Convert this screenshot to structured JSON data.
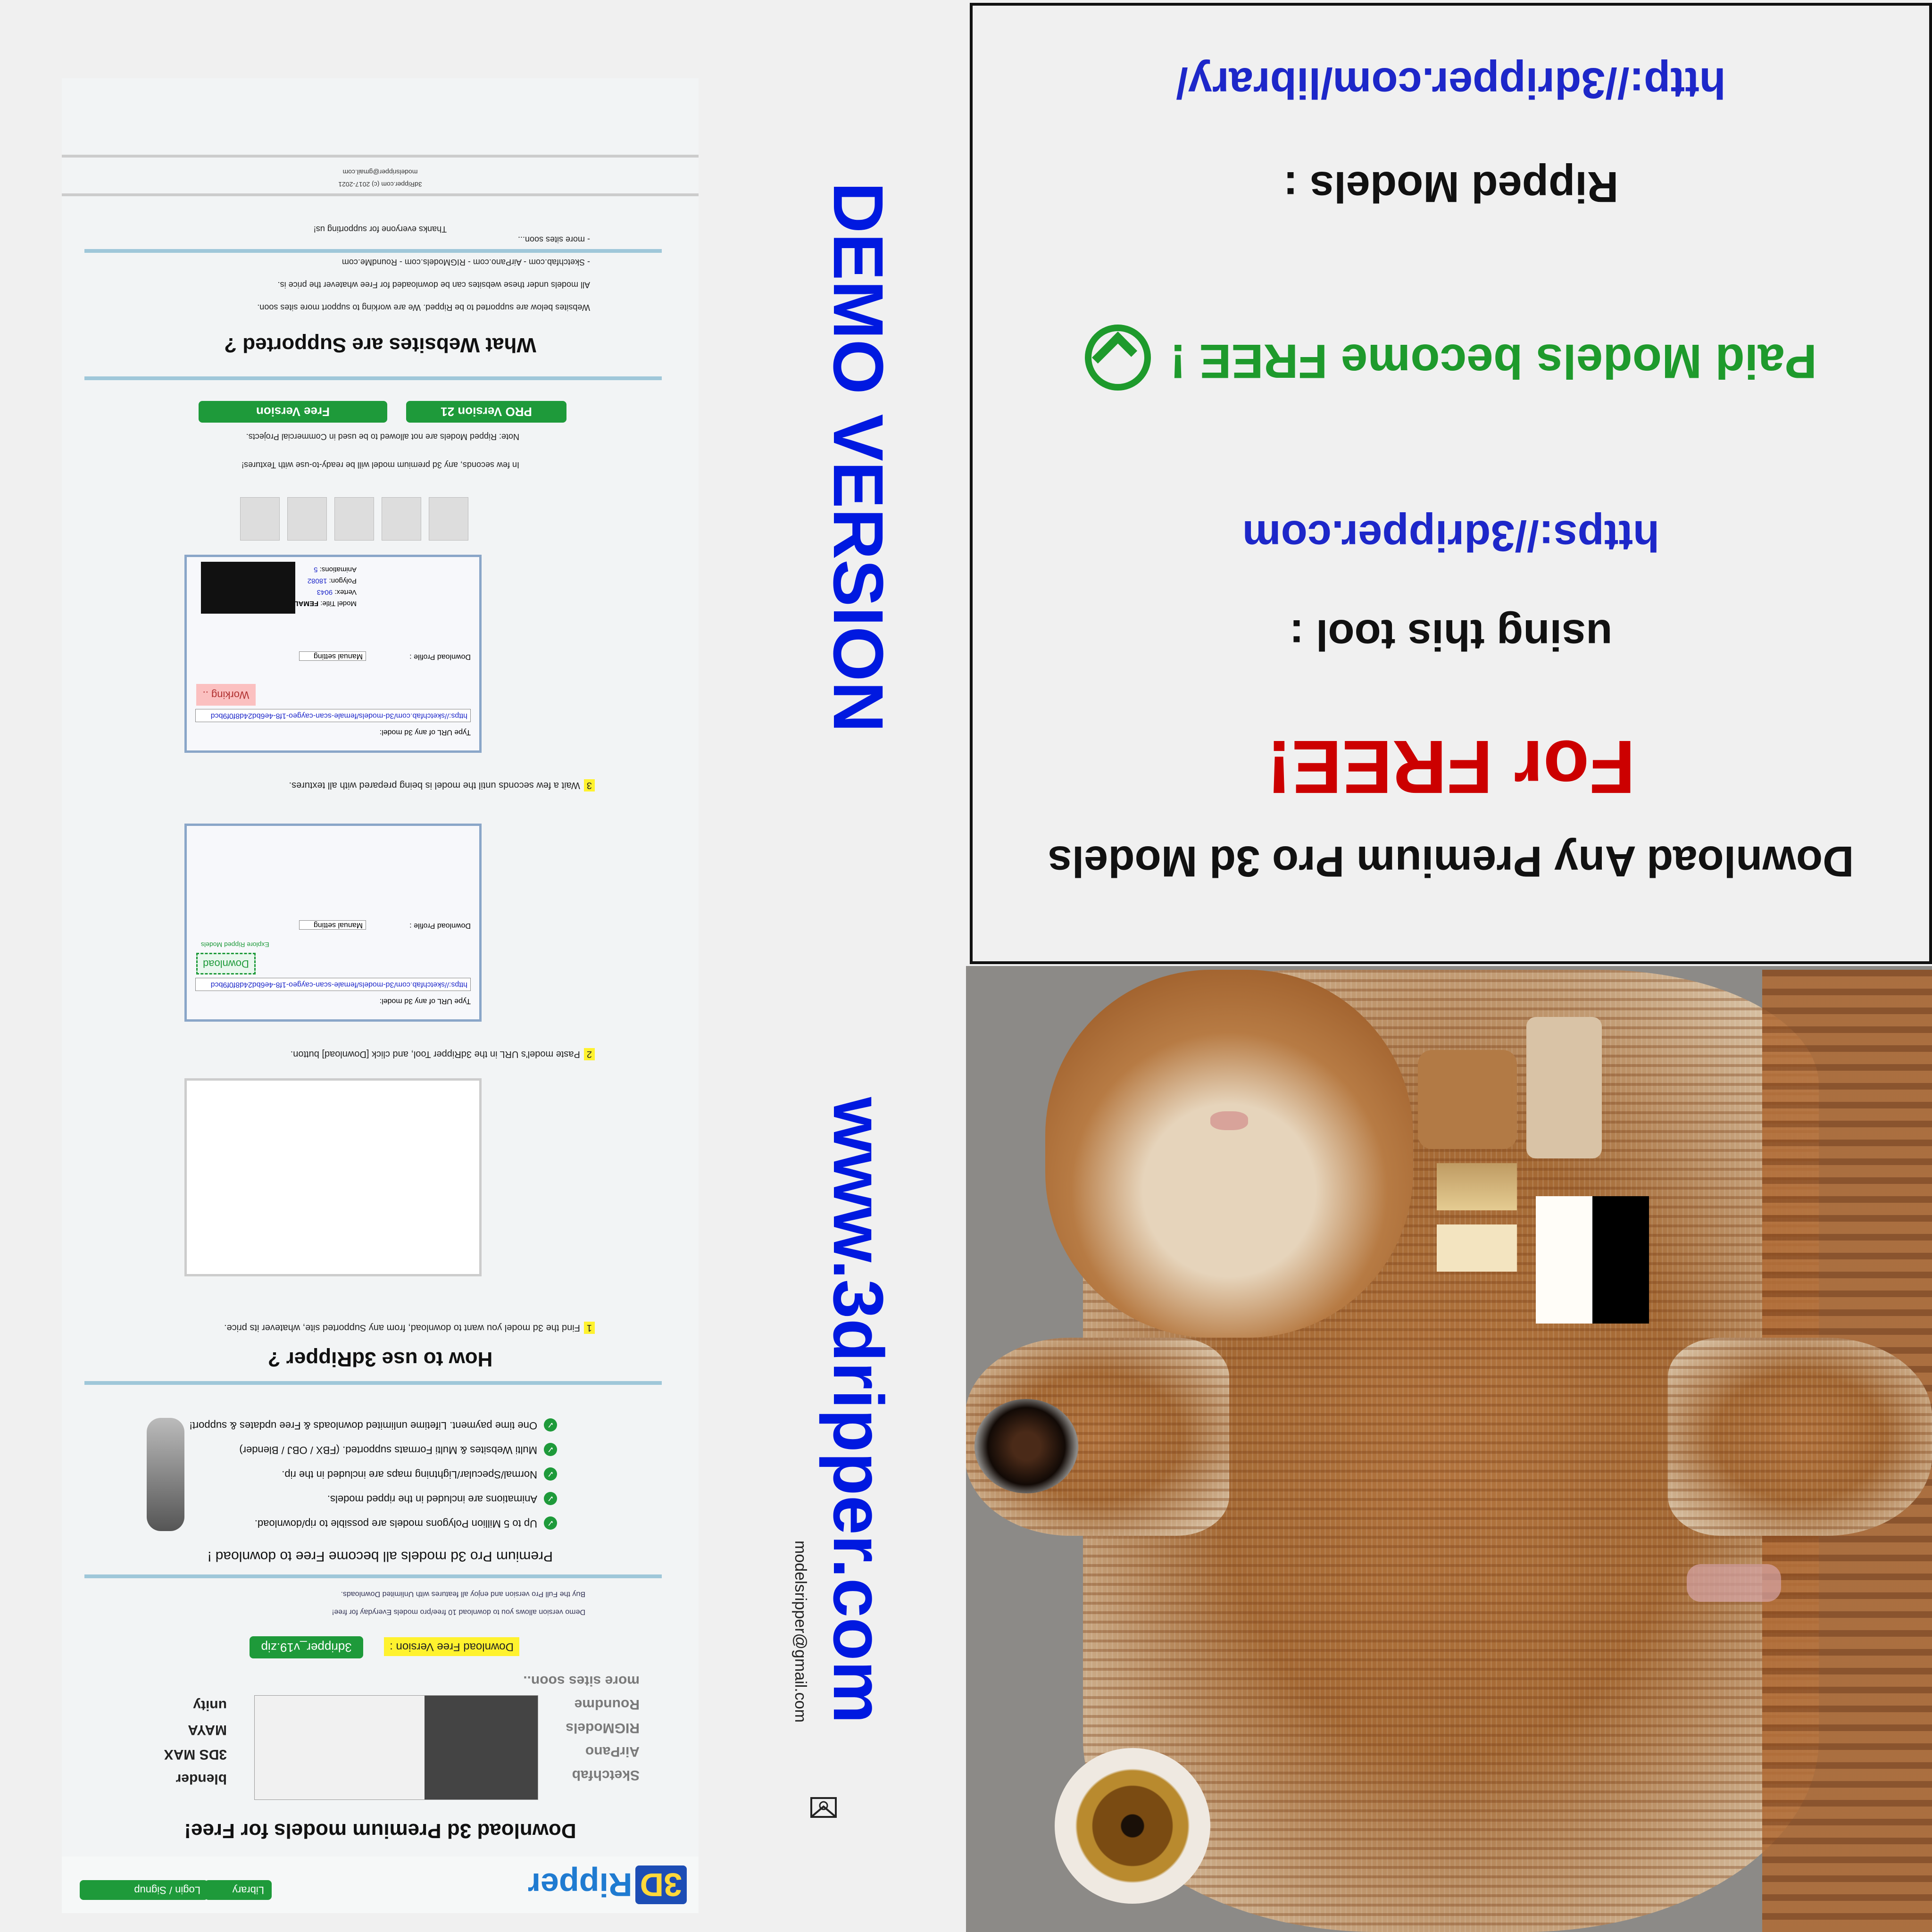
{
  "title_panel": {
    "line1": "Download Any Premium Pro 3d Models",
    "line2": "For FREE!",
    "line3": "using this tool :",
    "line4": "https://3dripper.com",
    "line5": "Paid Models become FREE !",
    "line6": "Ripped Models :",
    "line7": "http://3dripper.com/library/"
  },
  "watermark": {
    "site": "www.3dripper.com",
    "demo": "DEMO VERSION",
    "email": "modelsripper@gmail.com"
  },
  "site": {
    "logo": {
      "prefix": "3D",
      "name": "Ripper"
    },
    "nav": {
      "login": "Login / Signup",
      "library": "Library"
    },
    "hero_title": "Download 3d Premium models for Free!",
    "source_sites": [
      "Sketchfab",
      "AirPano",
      "RIGModels",
      "Roundme",
      "more sites soon.."
    ],
    "apps": [
      "blender",
      "3DS MAX",
      "MAYA",
      "unity"
    ],
    "download": {
      "label": "Download Free Version :",
      "file": "3dripper_v19.zip"
    },
    "trial_notes": [
      "Demo version allows you to download 10 free/pro models Everyday for free!",
      "Buy the Full Pro version and enjoy all features with Unlimited Downloads."
    ],
    "features_title": "Premium Pro 3d models all become Free to download !",
    "features": [
      "Up to 5 Million Polygons models are possible to rip/download.",
      "Animations are included in the ripped models.",
      "Normal/Specular/Lightning maps are included in the rip.",
      "Multi Websites & Multi Formats supported. (FBX / OBJ / Blender)",
      "One time payment. Lifetime unlimited downloads & Free updates & support!"
    ],
    "howto_title": "How to use 3dRipper ?",
    "steps": [
      {
        "num": "1",
        "text": "Find the 3d model you want to download, from any Supported site, whatever its price."
      },
      {
        "num": "2",
        "text": "Paste model's URL in the 3dRipper Tool, and click [Download] button."
      },
      {
        "num": "3",
        "text": "Wait a few seconds until the model is being prepared with all textures."
      }
    ],
    "tool": {
      "url_label": "Type URL of any 3d model:",
      "url_value": "https://sketchfab.com/3d-models/female-scan-caygeo-1f8-4e6bd24d8f0f9bcd",
      "download_btn": "Download",
      "working_btn": "Working ..",
      "explore": "Explore Ripped Models",
      "profile_label": "Download Profile :",
      "profile_value": "Manual setting",
      "model_title_label": "Model Title:",
      "model_title_value": "FEMALE SCAN",
      "vertex_label": "Vertex:",
      "vertex_value": "9043",
      "polygon_label": "Polygon:",
      "polygon_value": "18082",
      "animations_label": "Animations:",
      "animations_value": "5"
    },
    "note_ready": "In few seconds, any 3d premium model will be ready-to-use with Textures!",
    "note_commercial": "Note: Ripped Models are not allowed to be used in Commercial Projects.",
    "btn_free": "Free Version",
    "btn_pro": "PRO Version 21",
    "supported_title": "What Websites are Supported ?",
    "supported_lines": [
      "Websites below are supported to be Ripped. We are working to support more sites soon.",
      "All models under these websites can be downloaded for Free whatever the price is.",
      "- Sketchfab.com   - AirPano.com   - RIGModels.com   - RoundMe.com",
      "- more sites soon..."
    ],
    "thanks": "Thanks everyone for supporting us!",
    "footer_copy": "3dRipper.com (c) 2017-2021",
    "footer_email": "modelsripper@gmail.com"
  },
  "colors": {
    "accent_green": "#1e9a3a",
    "link_blue": "#1d27c9",
    "red": "#cc0000",
    "highlight_yellow": "#fff22e"
  }
}
